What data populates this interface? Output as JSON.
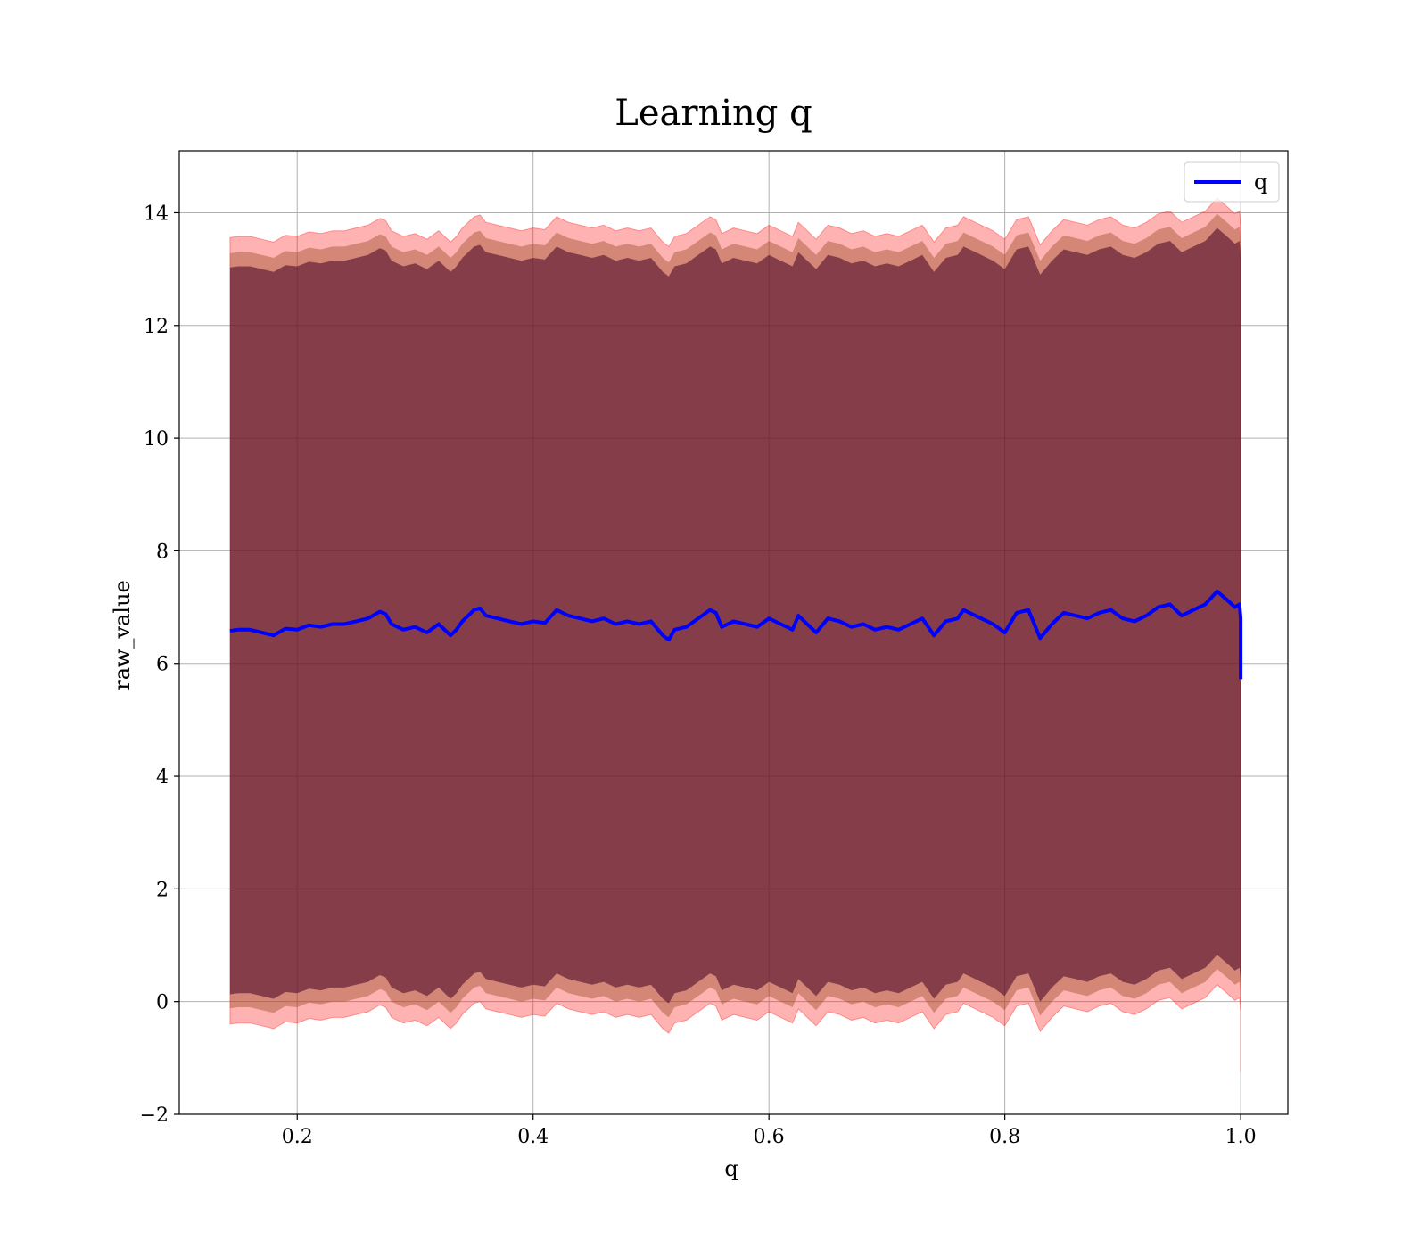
{
  "chart_data": {
    "type": "line",
    "title": "Learning q",
    "xlabel": "q",
    "ylabel": "raw_value",
    "xlim": [
      0.1,
      1.04
    ],
    "ylim": [
      -2.0,
      15.1
    ],
    "x_ticks": [
      0.2,
      0.4,
      0.6,
      0.8,
      1.0
    ],
    "x_tick_labels": [
      "0.2",
      "0.4",
      "0.6",
      "0.8",
      "1.0"
    ],
    "y_ticks": [
      -2,
      0,
      2,
      4,
      6,
      8,
      10,
      12,
      14
    ],
    "y_tick_labels": [
      "−2",
      "0",
      "2",
      "4",
      "6",
      "8",
      "10",
      "12",
      "14"
    ],
    "grid": true,
    "legend": {
      "placement": "top-right",
      "entries": [
        "q"
      ]
    },
    "colors": {
      "line": "#0000ff",
      "band_outer": "#ff0000",
      "band_middle": "#a0522d",
      "band_inner": "#4b0a2a"
    },
    "series": [
      {
        "name": "q",
        "x": [
          0.143,
          0.15,
          0.16,
          0.17,
          0.18,
          0.19,
          0.2,
          0.21,
          0.22,
          0.23,
          0.24,
          0.25,
          0.26,
          0.27,
          0.275,
          0.28,
          0.29,
          0.3,
          0.31,
          0.32,
          0.33,
          0.335,
          0.34,
          0.35,
          0.355,
          0.36,
          0.37,
          0.38,
          0.39,
          0.4,
          0.41,
          0.42,
          0.43,
          0.44,
          0.45,
          0.46,
          0.47,
          0.48,
          0.49,
          0.5,
          0.51,
          0.515,
          0.52,
          0.53,
          0.54,
          0.55,
          0.555,
          0.56,
          0.57,
          0.58,
          0.59,
          0.6,
          0.61,
          0.62,
          0.625,
          0.63,
          0.64,
          0.65,
          0.66,
          0.67,
          0.68,
          0.69,
          0.7,
          0.71,
          0.72,
          0.73,
          0.74,
          0.75,
          0.76,
          0.765,
          0.77,
          0.78,
          0.79,
          0.8,
          0.81,
          0.82,
          0.83,
          0.84,
          0.85,
          0.86,
          0.87,
          0.88,
          0.89,
          0.9,
          0.91,
          0.92,
          0.93,
          0.94,
          0.95,
          0.96,
          0.97,
          0.98,
          0.99,
          0.995,
          0.999,
          1.0,
          1.0
        ],
        "y": [
          6.58,
          6.6,
          6.6,
          6.55,
          6.5,
          6.62,
          6.6,
          6.68,
          6.65,
          6.7,
          6.7,
          6.75,
          6.8,
          6.92,
          6.88,
          6.7,
          6.6,
          6.65,
          6.55,
          6.7,
          6.5,
          6.6,
          6.75,
          6.95,
          6.98,
          6.85,
          6.8,
          6.75,
          6.7,
          6.75,
          6.72,
          6.95,
          6.85,
          6.8,
          6.75,
          6.8,
          6.7,
          6.75,
          6.7,
          6.75,
          6.5,
          6.42,
          6.6,
          6.65,
          6.8,
          6.95,
          6.9,
          6.65,
          6.75,
          6.7,
          6.65,
          6.8,
          6.7,
          6.6,
          6.85,
          6.75,
          6.55,
          6.8,
          6.75,
          6.65,
          6.7,
          6.6,
          6.65,
          6.6,
          6.7,
          6.8,
          6.5,
          6.75,
          6.8,
          6.95,
          6.9,
          6.8,
          6.7,
          6.55,
          6.9,
          6.95,
          6.45,
          6.7,
          6.9,
          6.85,
          6.8,
          6.9,
          6.95,
          6.8,
          6.75,
          6.85,
          7.0,
          7.05,
          6.85,
          6.95,
          7.05,
          7.28,
          7.1,
          7.0,
          7.05,
          6.8,
          5.72
        ]
      }
    ],
    "band_offsets": {
      "outer": 6.98,
      "middle": 6.7,
      "inner": 6.45
    }
  }
}
